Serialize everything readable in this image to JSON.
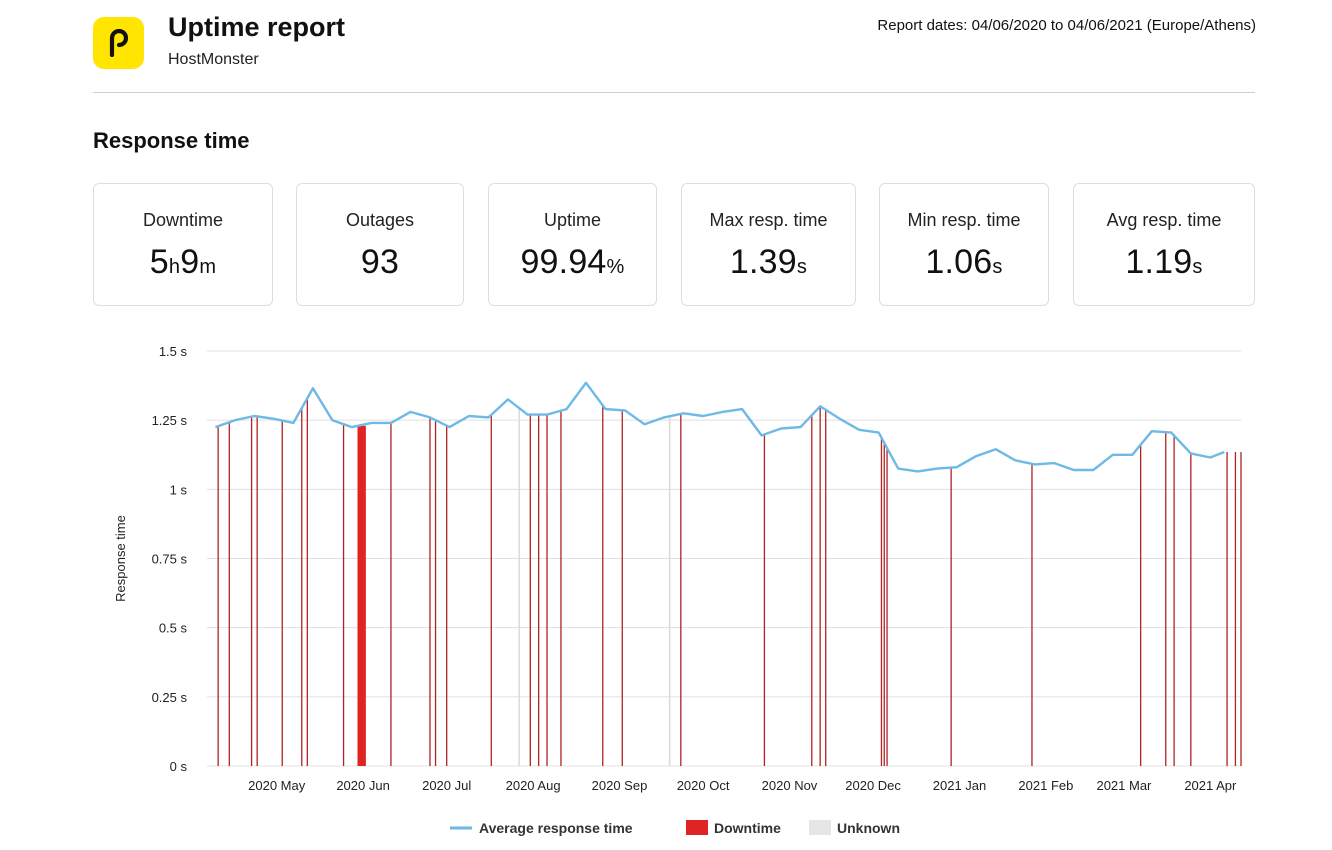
{
  "header": {
    "title": "Uptime report",
    "subtitle": "HostMonster",
    "report_dates": "Report dates: 04/06/2020 to 04/06/2021 (Europe/Athens)"
  },
  "section_title": "Response time",
  "stats": [
    {
      "label": "Downtime",
      "v1": "5",
      "u1": "h",
      "v2": "9",
      "u2": "m"
    },
    {
      "label": "Outages",
      "v1": "93",
      "u1": "",
      "v2": "",
      "u2": ""
    },
    {
      "label": "Uptime",
      "v1": "99.94",
      "u1": "%",
      "v2": "",
      "u2": ""
    },
    {
      "label": "Max resp. time",
      "v1": "1.39",
      "u1": "s",
      "v2": "",
      "u2": ""
    },
    {
      "label": "Min resp. time",
      "v1": "1.06",
      "u1": "s",
      "v2": "",
      "u2": ""
    },
    {
      "label": "Avg resp. time",
      "v1": "1.19",
      "u1": "s",
      "v2": "",
      "u2": ""
    }
  ],
  "colors": {
    "logo_bg": "#FFE500",
    "line": "#6EB9E6",
    "downtime": "#E02424",
    "downtime_line": "#B22222",
    "unknown": "#E6E6E6",
    "grid": "#E0E0E0"
  },
  "chart_data": {
    "type": "line",
    "ylabel": "Response time",
    "ylim": [
      0,
      1.5
    ],
    "yticks": [
      {
        "value": 0,
        "label": "0 s"
      },
      {
        "value": 0.25,
        "label": "0.25 s"
      },
      {
        "value": 0.5,
        "label": "0.5 s"
      },
      {
        "value": 0.75,
        "label": "0.75 s"
      },
      {
        "value": 1,
        "label": "1 s"
      },
      {
        "value": 1.25,
        "label": "1.25 s"
      },
      {
        "value": 1.5,
        "label": "1.5 s"
      }
    ],
    "xlim": [
      "2020-04-06",
      "2021-04-12"
    ],
    "xticks": [
      {
        "date": "2020-05-01",
        "label": "2020 May"
      },
      {
        "date": "2020-06-01",
        "label": "2020 Jun"
      },
      {
        "date": "2020-07-01",
        "label": "2020 Jul"
      },
      {
        "date": "2020-08-01",
        "label": "2020 Aug"
      },
      {
        "date": "2020-09-01",
        "label": "2020 Sep"
      },
      {
        "date": "2020-10-01",
        "label": "2020 Oct"
      },
      {
        "date": "2020-11-01",
        "label": "2020 Nov"
      },
      {
        "date": "2020-12-01",
        "label": "2020 Dec"
      },
      {
        "date": "2021-01-01",
        "label": "2021 Jan"
      },
      {
        "date": "2021-02-01",
        "label": "2021 Feb"
      },
      {
        "date": "2021-03-01",
        "label": "2021 Mar"
      },
      {
        "date": "2021-04-01",
        "label": "2021 Apr"
      }
    ],
    "series": [
      {
        "name": "Average response time",
        "points": [
          [
            "2020-04-09",
            1.225
          ],
          [
            "2020-04-16",
            1.25
          ],
          [
            "2020-04-23",
            1.265
          ],
          [
            "2020-04-30",
            1.255
          ],
          [
            "2020-05-07",
            1.24
          ],
          [
            "2020-05-14",
            1.365
          ],
          [
            "2020-05-21",
            1.25
          ],
          [
            "2020-05-28",
            1.225
          ],
          [
            "2020-06-04",
            1.24
          ],
          [
            "2020-06-11",
            1.24
          ],
          [
            "2020-06-18",
            1.28
          ],
          [
            "2020-06-25",
            1.26
          ],
          [
            "2020-07-02",
            1.225
          ],
          [
            "2020-07-09",
            1.265
          ],
          [
            "2020-07-16",
            1.26
          ],
          [
            "2020-07-23",
            1.325
          ],
          [
            "2020-07-30",
            1.27
          ],
          [
            "2020-08-06",
            1.27
          ],
          [
            "2020-08-13",
            1.29
          ],
          [
            "2020-08-20",
            1.385
          ],
          [
            "2020-08-27",
            1.29
          ],
          [
            "2020-09-03",
            1.285
          ],
          [
            "2020-09-10",
            1.235
          ],
          [
            "2020-09-17",
            1.26
          ],
          [
            "2020-09-24",
            1.275
          ],
          [
            "2020-10-01",
            1.265
          ],
          [
            "2020-10-08",
            1.28
          ],
          [
            "2020-10-15",
            1.29
          ],
          [
            "2020-10-22",
            1.195
          ],
          [
            "2020-10-29",
            1.22
          ],
          [
            "2020-11-05",
            1.225
          ],
          [
            "2020-11-12",
            1.3
          ],
          [
            "2020-11-19",
            1.255
          ],
          [
            "2020-11-26",
            1.215
          ],
          [
            "2020-12-03",
            1.205
          ],
          [
            "2020-12-10",
            1.075
          ],
          [
            "2020-12-17",
            1.065
          ],
          [
            "2020-12-24",
            1.075
          ],
          [
            "2020-12-31",
            1.08
          ],
          [
            "2021-01-07",
            1.12
          ],
          [
            "2021-01-14",
            1.145
          ],
          [
            "2021-01-21",
            1.105
          ],
          [
            "2021-01-28",
            1.09
          ],
          [
            "2021-02-04",
            1.095
          ],
          [
            "2021-02-11",
            1.07
          ],
          [
            "2021-02-18",
            1.07
          ],
          [
            "2021-02-25",
            1.125
          ],
          [
            "2021-03-04",
            1.125
          ],
          [
            "2021-03-11",
            1.21
          ],
          [
            "2021-03-18",
            1.205
          ],
          [
            "2021-03-25",
            1.13
          ],
          [
            "2021-04-01",
            1.115
          ],
          [
            "2021-04-06",
            1.135
          ]
        ]
      }
    ],
    "downtime_dates": [
      "2020-04-10",
      "2020-04-14",
      "2020-04-22",
      "2020-04-24",
      "2020-05-03",
      "2020-05-10",
      "2020-05-12",
      "2020-05-25",
      "2020-06-11",
      "2020-06-25",
      "2020-06-27",
      "2020-07-01",
      "2020-07-17",
      "2020-07-31",
      "2020-08-03",
      "2020-08-06",
      "2020-08-11",
      "2020-08-26",
      "2020-09-02",
      "2020-09-23",
      "2020-10-23",
      "2020-11-09",
      "2020-11-12",
      "2020-11-14",
      "2020-12-04",
      "2020-12-05",
      "2020-12-06",
      "2020-12-29",
      "2021-01-27",
      "2021-03-07",
      "2021-03-16",
      "2021-03-19",
      "2021-03-25",
      "2021-04-07",
      "2021-04-10",
      "2021-04-12"
    ],
    "downtime_block": [
      "2020-05-30",
      "2020-06-02"
    ],
    "unknown_dates": [
      "2020-07-27",
      "2020-09-19"
    ],
    "legend": {
      "line_label": "Average response time",
      "downtime_label": "Downtime",
      "unknown_label": "Unknown",
      "position": "bottom"
    }
  }
}
